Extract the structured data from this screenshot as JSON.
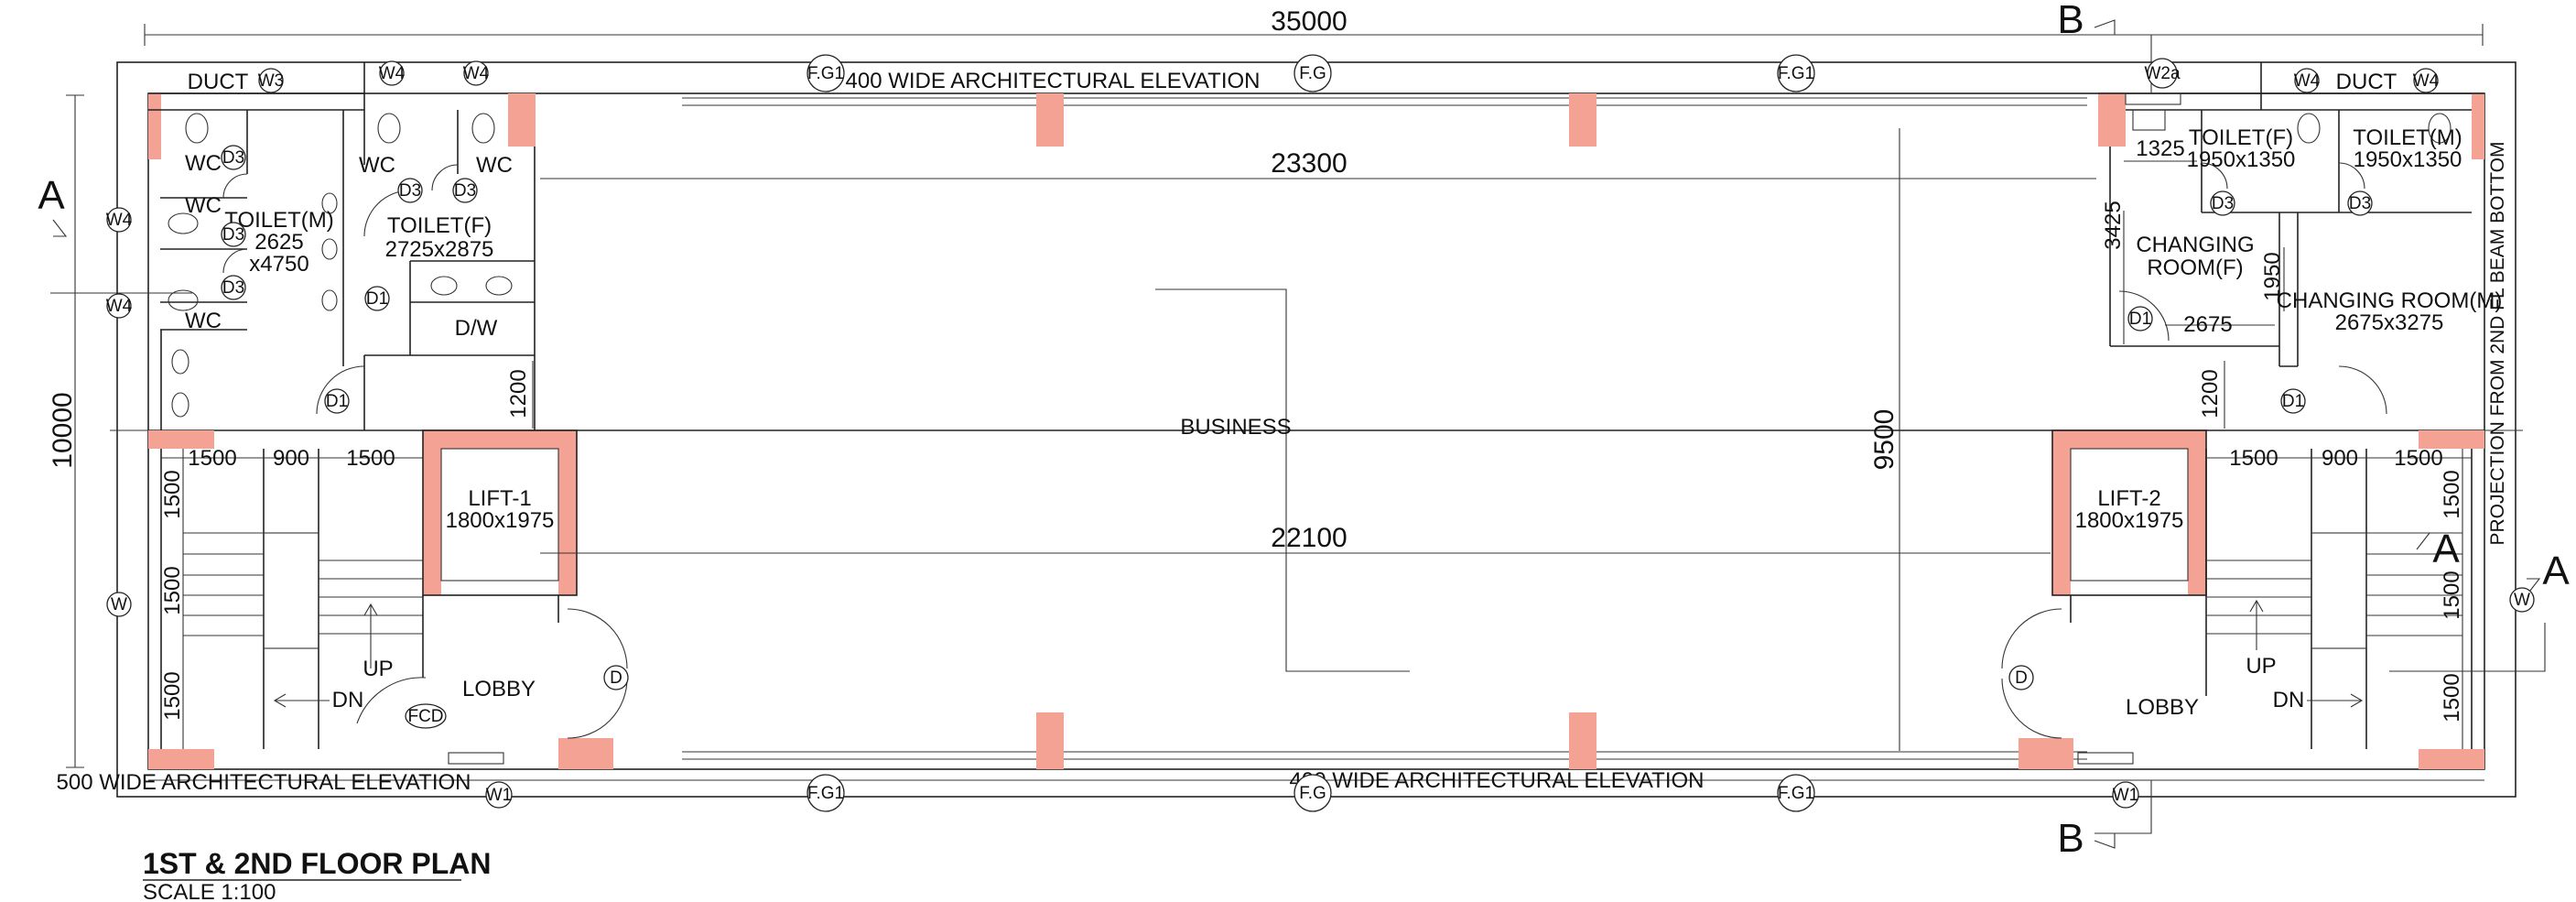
{
  "colors": {
    "line": "#222222",
    "column": "#F4A294",
    "background": "#ffffff"
  },
  "title": {
    "main": "1ST & 2ND FLOOR PLAN",
    "scale": "SCALE 1:100"
  },
  "dimensions": {
    "overall_width": "35000",
    "overall_depth": "10000",
    "inner_span_top": "23300",
    "inner_span_mid": "22100",
    "clear_height": "9500",
    "lift_approach_left": "1200",
    "lift_approach_right": "1200",
    "stair_left": [
      "1500",
      "900",
      "1500"
    ],
    "stair_right": [
      "1500",
      "900",
      "1500"
    ],
    "stair_left_vertical": [
      "1500",
      "1500",
      "1500"
    ],
    "stair_right_vertical": [
      "1500",
      "1500",
      "1500"
    ],
    "changing_f": [
      "1325",
      "3425",
      "2675",
      "1950"
    ]
  },
  "elevation_notes": {
    "top": "400 WIDE ARCHITECTURAL ELEVATION",
    "bottom_left": "500 WIDE ARCHITECTURAL ELEVATION",
    "bottom_main": "400 WIDE ARCHITECTURAL ELEVATION",
    "right_projection": "PROJECTION FROM 2ND FL BEAM BOTTOM"
  },
  "rooms": {
    "duct_left": "DUCT",
    "duct_right": "DUCT",
    "toilet_m_left": [
      "TOILET(M)",
      "2625",
      "x4750"
    ],
    "toilet_f_left": [
      "TOILET(F)",
      "2725x2875"
    ],
    "dw": "D/W",
    "wc": "WC",
    "business": "BUSINESS",
    "lift_1": [
      "LIFT-1",
      "1800x1975"
    ],
    "lift_2": [
      "LIFT-2",
      "1800x1975"
    ],
    "lobby": "LOBBY",
    "up": "UP",
    "dn": "DN",
    "toilet_f_right": [
      "TOILET(F)",
      "1950x1350"
    ],
    "toilet_m_right": [
      "TOILET(M)",
      "1950x1350"
    ],
    "changing_f": [
      "CHANGING",
      "ROOM(F)"
    ],
    "changing_m": [
      "CHANGING ROOM(M)",
      "2675x3275"
    ]
  },
  "tags": {
    "W": "W",
    "W1": "W1",
    "W2a": "W2a",
    "W3": "W3",
    "W4": "W4",
    "D": "D",
    "D1": "D1",
    "D3": "D3",
    "FCD": "FCD",
    "FG": "F.G",
    "FG1": "F.G1"
  },
  "section_marks": {
    "A": "A",
    "B": "B"
  }
}
